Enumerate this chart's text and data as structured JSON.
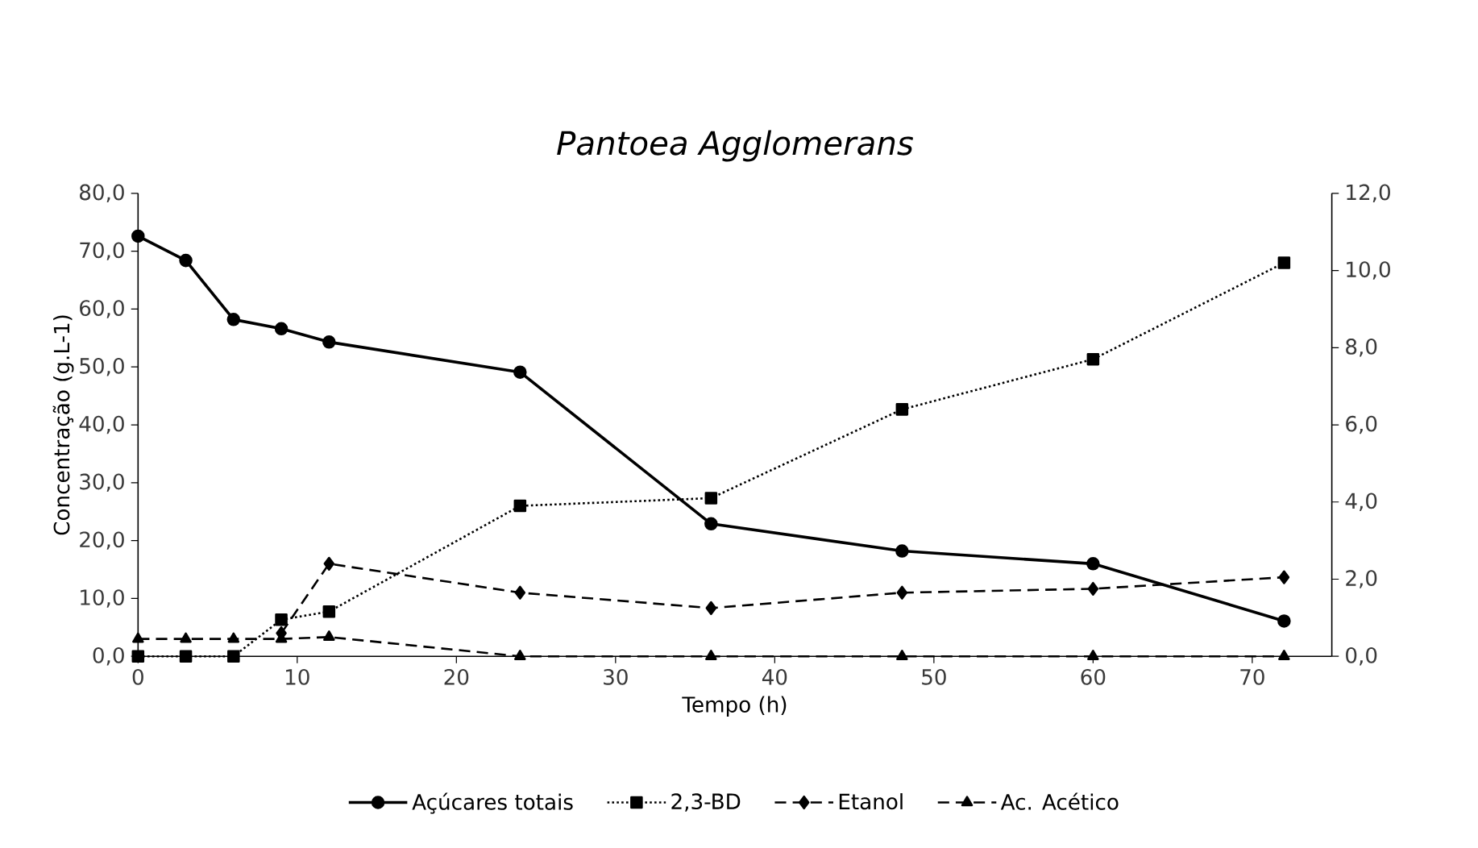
{
  "chart_data": {
    "type": "line",
    "title": "Pantoea Agglomerans",
    "xlabel": "Tempo  (h)",
    "ylabel": "Concentração (g.L-1)",
    "x": [
      0,
      3,
      6,
      9,
      12,
      24,
      36,
      48,
      60,
      72
    ],
    "series": [
      {
        "name": "Açúcares totais",
        "color": "#000000",
        "marker": "circle",
        "line_style": "solid",
        "values": [
          72.6,
          68.4,
          58.2,
          56.6,
          54.3,
          49.1,
          22.9,
          18.2,
          16.0,
          6.1
        ]
      },
      {
        "name": "2,3-BD",
        "color": "#000000",
        "marker": "square",
        "line_style": "dotted",
        "axis": "y2",
        "values": [
          0,
          0,
          0,
          0.95,
          1.16,
          3.9,
          4.1,
          6.4,
          7.7,
          10.2
        ]
      },
      {
        "name": "Etanol",
        "color": "#000000",
        "marker": "diamond",
        "line_style": "dashed",
        "axis": "y2",
        "values": [
          null,
          null,
          null,
          0.6,
          2.4,
          1.65,
          1.25,
          1.65,
          1.75,
          2.05
        ]
      },
      {
        "name": "Ac. Acético",
        "color": "#000000",
        "marker": "triangle",
        "line_style": "dashed",
        "axis": "y2",
        "values": [
          0.45,
          0.45,
          0.45,
          0.45,
          0.5,
          0,
          0,
          0,
          0,
          0
        ]
      }
    ],
    "xlim": [
      0,
      75
    ],
    "xticks": [
      0,
      10,
      20,
      30,
      40,
      50,
      60,
      70
    ],
    "ylim": [
      0,
      80
    ],
    "yticks": [
      {
        "value": 0,
        "label": "0,0"
      },
      {
        "value": 10,
        "label": "10,0"
      },
      {
        "value": 20,
        "label": "20,0"
      },
      {
        "value": 30,
        "label": "30,0"
      },
      {
        "value": 40,
        "label": "40,0"
      },
      {
        "value": 50,
        "label": "50,0"
      },
      {
        "value": 60,
        "label": "60,0"
      },
      {
        "value": 70,
        "label": "70,0"
      },
      {
        "value": 80,
        "label": "80,0"
      }
    ],
    "y2lim": [
      0,
      12
    ],
    "y2ticks": [
      {
        "value": 0,
        "label": "0,0"
      },
      {
        "value": 2,
        "label": "2,0"
      },
      {
        "value": 4,
        "label": "4,0"
      },
      {
        "value": 6,
        "label": "6,0"
      },
      {
        "value": 8,
        "label": "8,0"
      },
      {
        "value": 10,
        "label": "10,0"
      },
      {
        "value": 12,
        "label": "12,0"
      }
    ],
    "grid": false,
    "legend": "bottom"
  }
}
